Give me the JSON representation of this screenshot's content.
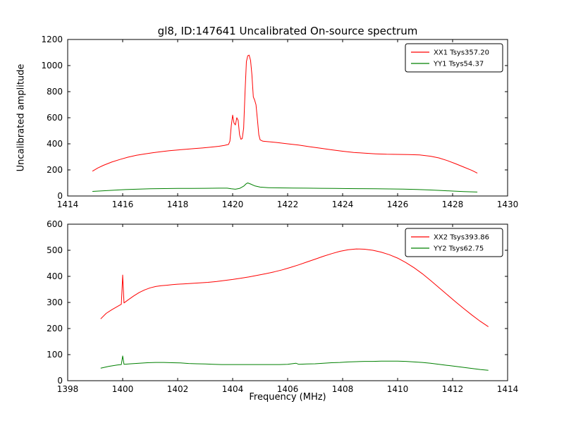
{
  "title": "gl8, ID:147641 Uncalibrated On-source spectrum",
  "ylabel": "Uncalibrated amplitude",
  "xlabel": "Frequency (MHz)",
  "colors": {
    "xx_line": "#ff0000",
    "yy_line": "#008000",
    "axis": "#000000",
    "background": "#ffffff"
  },
  "chart_data": [
    {
      "type": "line",
      "title": "gl8, ID:147641 Uncalibrated On-source spectrum",
      "xlabel": "",
      "ylabel": "Uncalibrated amplitude",
      "xlim": [
        1414,
        1430
      ],
      "ylim": [
        0,
        1200
      ],
      "xticks": [
        1414,
        1416,
        1418,
        1420,
        1422,
        1424,
        1426,
        1428,
        1430
      ],
      "yticks": [
        0,
        200,
        400,
        600,
        800,
        1000,
        1200
      ],
      "grid": false,
      "legend_position": "upper right",
      "series": [
        {
          "name": "XX1 Tsys357.20",
          "color": "#ff0000",
          "points": [
            [
              1414.9,
              190
            ],
            [
              1415.1,
              215
            ],
            [
              1415.3,
              235
            ],
            [
              1415.6,
              260
            ],
            [
              1415.9,
              280
            ],
            [
              1416.2,
              298
            ],
            [
              1416.5,
              312
            ],
            [
              1416.8,
              322
            ],
            [
              1417.1,
              332
            ],
            [
              1417.4,
              340
            ],
            [
              1417.7,
              347
            ],
            [
              1418.0,
              353
            ],
            [
              1418.3,
              358
            ],
            [
              1418.6,
              363
            ],
            [
              1418.9,
              368
            ],
            [
              1419.2,
              374
            ],
            [
              1419.5,
              381
            ],
            [
              1419.7,
              388
            ],
            [
              1419.85,
              395
            ],
            [
              1419.9,
              420
            ],
            [
              1419.95,
              540
            ],
            [
              1420.0,
              620
            ],
            [
              1420.05,
              560
            ],
            [
              1420.1,
              545
            ],
            [
              1420.15,
              600
            ],
            [
              1420.2,
              580
            ],
            [
              1420.25,
              470
            ],
            [
              1420.3,
              435
            ],
            [
              1420.35,
              440
            ],
            [
              1420.4,
              520
            ],
            [
              1420.45,
              800
            ],
            [
              1420.5,
              1030
            ],
            [
              1420.55,
              1075
            ],
            [
              1420.6,
              1080
            ],
            [
              1420.65,
              1040
            ],
            [
              1420.7,
              930
            ],
            [
              1420.75,
              760
            ],
            [
              1420.8,
              735
            ],
            [
              1420.85,
              700
            ],
            [
              1420.9,
              590
            ],
            [
              1420.95,
              470
            ],
            [
              1421.0,
              430
            ],
            [
              1421.1,
              420
            ],
            [
              1421.3,
              416
            ],
            [
              1421.6,
              410
            ],
            [
              1422.0,
              400
            ],
            [
              1422.4,
              390
            ],
            [
              1422.8,
              378
            ],
            [
              1423.2,
              366
            ],
            [
              1423.6,
              354
            ],
            [
              1424.0,
              343
            ],
            [
              1424.4,
              334
            ],
            [
              1424.8,
              328
            ],
            [
              1425.2,
              323
            ],
            [
              1425.6,
              320
            ],
            [
              1426.0,
              319
            ],
            [
              1426.4,
              318
            ],
            [
              1426.8,
              315
            ],
            [
              1427.2,
              305
            ],
            [
              1427.5,
              292
            ],
            [
              1427.8,
              272
            ],
            [
              1428.1,
              248
            ],
            [
              1428.4,
              222
            ],
            [
              1428.7,
              196
            ],
            [
              1428.9,
              175
            ]
          ]
        },
        {
          "name": "YY1 Tsys54.37",
          "color": "#008000",
          "points": [
            [
              1414.9,
              35
            ],
            [
              1415.3,
              40
            ],
            [
              1415.7,
              45
            ],
            [
              1416.1,
              49
            ],
            [
              1416.5,
              52
            ],
            [
              1417.0,
              55
            ],
            [
              1417.5,
              57
            ],
            [
              1418.0,
              58
            ],
            [
              1418.5,
              58
            ],
            [
              1419.0,
              59
            ],
            [
              1419.5,
              60
            ],
            [
              1419.8,
              60
            ],
            [
              1419.95,
              55
            ],
            [
              1420.1,
              52
            ],
            [
              1420.25,
              58
            ],
            [
              1420.4,
              75
            ],
            [
              1420.5,
              95
            ],
            [
              1420.55,
              100
            ],
            [
              1420.65,
              92
            ],
            [
              1420.8,
              78
            ],
            [
              1421.0,
              68
            ],
            [
              1421.3,
              64
            ],
            [
              1421.7,
              62
            ],
            [
              1422.2,
              61
            ],
            [
              1422.7,
              60
            ],
            [
              1423.2,
              59
            ],
            [
              1423.7,
              58
            ],
            [
              1424.2,
              57
            ],
            [
              1424.7,
              56
            ],
            [
              1425.2,
              55
            ],
            [
              1425.7,
              54
            ],
            [
              1426.2,
              53
            ],
            [
              1426.7,
              50
            ],
            [
              1427.2,
              46
            ],
            [
              1427.6,
              42
            ],
            [
              1428.0,
              38
            ],
            [
              1428.4,
              34
            ],
            [
              1428.9,
              30
            ]
          ]
        }
      ]
    },
    {
      "type": "line",
      "title": "",
      "xlabel": "Frequency (MHz)",
      "ylabel": "",
      "xlim": [
        1398,
        1414
      ],
      "ylim": [
        0,
        600
      ],
      "xticks": [
        1398,
        1400,
        1402,
        1404,
        1406,
        1408,
        1410,
        1412,
        1414
      ],
      "yticks": [
        0,
        100,
        200,
        300,
        400,
        500,
        600
      ],
      "grid": false,
      "legend_position": "upper right",
      "series": [
        {
          "name": "XX2 Tsys393.86",
          "color": "#ff0000",
          "points": [
            [
              1399.2,
              237
            ],
            [
              1399.4,
              258
            ],
            [
              1399.6,
              272
            ],
            [
              1399.8,
              284
            ],
            [
              1399.95,
              293
            ],
            [
              1400.0,
              405
            ],
            [
              1400.05,
              298
            ],
            [
              1400.2,
              310
            ],
            [
              1400.4,
              325
            ],
            [
              1400.6,
              338
            ],
            [
              1400.8,
              348
            ],
            [
              1401.0,
              356
            ],
            [
              1401.2,
              361
            ],
            [
              1401.4,
              364
            ],
            [
              1401.6,
              366
            ],
            [
              1401.8,
              368
            ],
            [
              1402.0,
              370
            ],
            [
              1402.2,
              371
            ],
            [
              1402.5,
              373
            ],
            [
              1402.8,
              375
            ],
            [
              1403.1,
              377
            ],
            [
              1403.4,
              380
            ],
            [
              1403.7,
              384
            ],
            [
              1404.0,
              388
            ],
            [
              1404.3,
              393
            ],
            [
              1404.6,
              398
            ],
            [
              1404.9,
              404
            ],
            [
              1405.2,
              410
            ],
            [
              1405.5,
              417
            ],
            [
              1405.8,
              425
            ],
            [
              1406.1,
              434
            ],
            [
              1406.4,
              444
            ],
            [
              1406.7,
              455
            ],
            [
              1407.0,
              466
            ],
            [
              1407.3,
              477
            ],
            [
              1407.6,
              487
            ],
            [
              1407.9,
              496
            ],
            [
              1408.2,
              502
            ],
            [
              1408.5,
              505
            ],
            [
              1408.8,
              504
            ],
            [
              1409.1,
              500
            ],
            [
              1409.4,
              493
            ],
            [
              1409.7,
              483
            ],
            [
              1410.0,
              470
            ],
            [
              1410.3,
              453
            ],
            [
              1410.6,
              433
            ],
            [
              1410.9,
              410
            ],
            [
              1411.2,
              384
            ],
            [
              1411.5,
              357
            ],
            [
              1411.8,
              330
            ],
            [
              1412.1,
              303
            ],
            [
              1412.4,
              277
            ],
            [
              1412.7,
              252
            ],
            [
              1413.0,
              228
            ],
            [
              1413.3,
              207
            ]
          ]
        },
        {
          "name": "YY2 Tsys62.75",
          "color": "#008000",
          "points": [
            [
              1399.2,
              48
            ],
            [
              1399.5,
              55
            ],
            [
              1399.8,
              60
            ],
            [
              1399.95,
              62
            ],
            [
              1400.0,
              95
            ],
            [
              1400.05,
              63
            ],
            [
              1400.3,
              65
            ],
            [
              1400.6,
              67
            ],
            [
              1400.9,
              69
            ],
            [
              1401.2,
              70
            ],
            [
              1401.5,
              70
            ],
            [
              1401.8,
              69
            ],
            [
              1402.1,
              68
            ],
            [
              1402.4,
              66
            ],
            [
              1402.7,
              65
            ],
            [
              1403.0,
              64
            ],
            [
              1403.3,
              63
            ],
            [
              1403.6,
              62
            ],
            [
              1403.9,
              62
            ],
            [
              1404.2,
              62
            ],
            [
              1404.5,
              62
            ],
            [
              1404.8,
              62
            ],
            [
              1405.1,
              62
            ],
            [
              1405.4,
              62
            ],
            [
              1405.7,
              62
            ],
            [
              1406.0,
              63
            ],
            [
              1406.3,
              67
            ],
            [
              1406.4,
              63
            ],
            [
              1406.7,
              64
            ],
            [
              1407.0,
              65
            ],
            [
              1407.3,
              67
            ],
            [
              1407.6,
              69
            ],
            [
              1407.9,
              70
            ],
            [
              1408.2,
              72
            ],
            [
              1408.5,
              73
            ],
            [
              1408.8,
              74
            ],
            [
              1409.1,
              74
            ],
            [
              1409.4,
              75
            ],
            [
              1409.7,
              75
            ],
            [
              1410.0,
              75
            ],
            [
              1410.3,
              74
            ],
            [
              1410.6,
              72
            ],
            [
              1410.9,
              70
            ],
            [
              1411.2,
              67
            ],
            [
              1411.5,
              63
            ],
            [
              1411.8,
              59
            ],
            [
              1412.1,
              55
            ],
            [
              1412.4,
              51
            ],
            [
              1412.7,
              47
            ],
            [
              1413.0,
              43
            ],
            [
              1413.3,
              40
            ]
          ]
        }
      ]
    }
  ]
}
